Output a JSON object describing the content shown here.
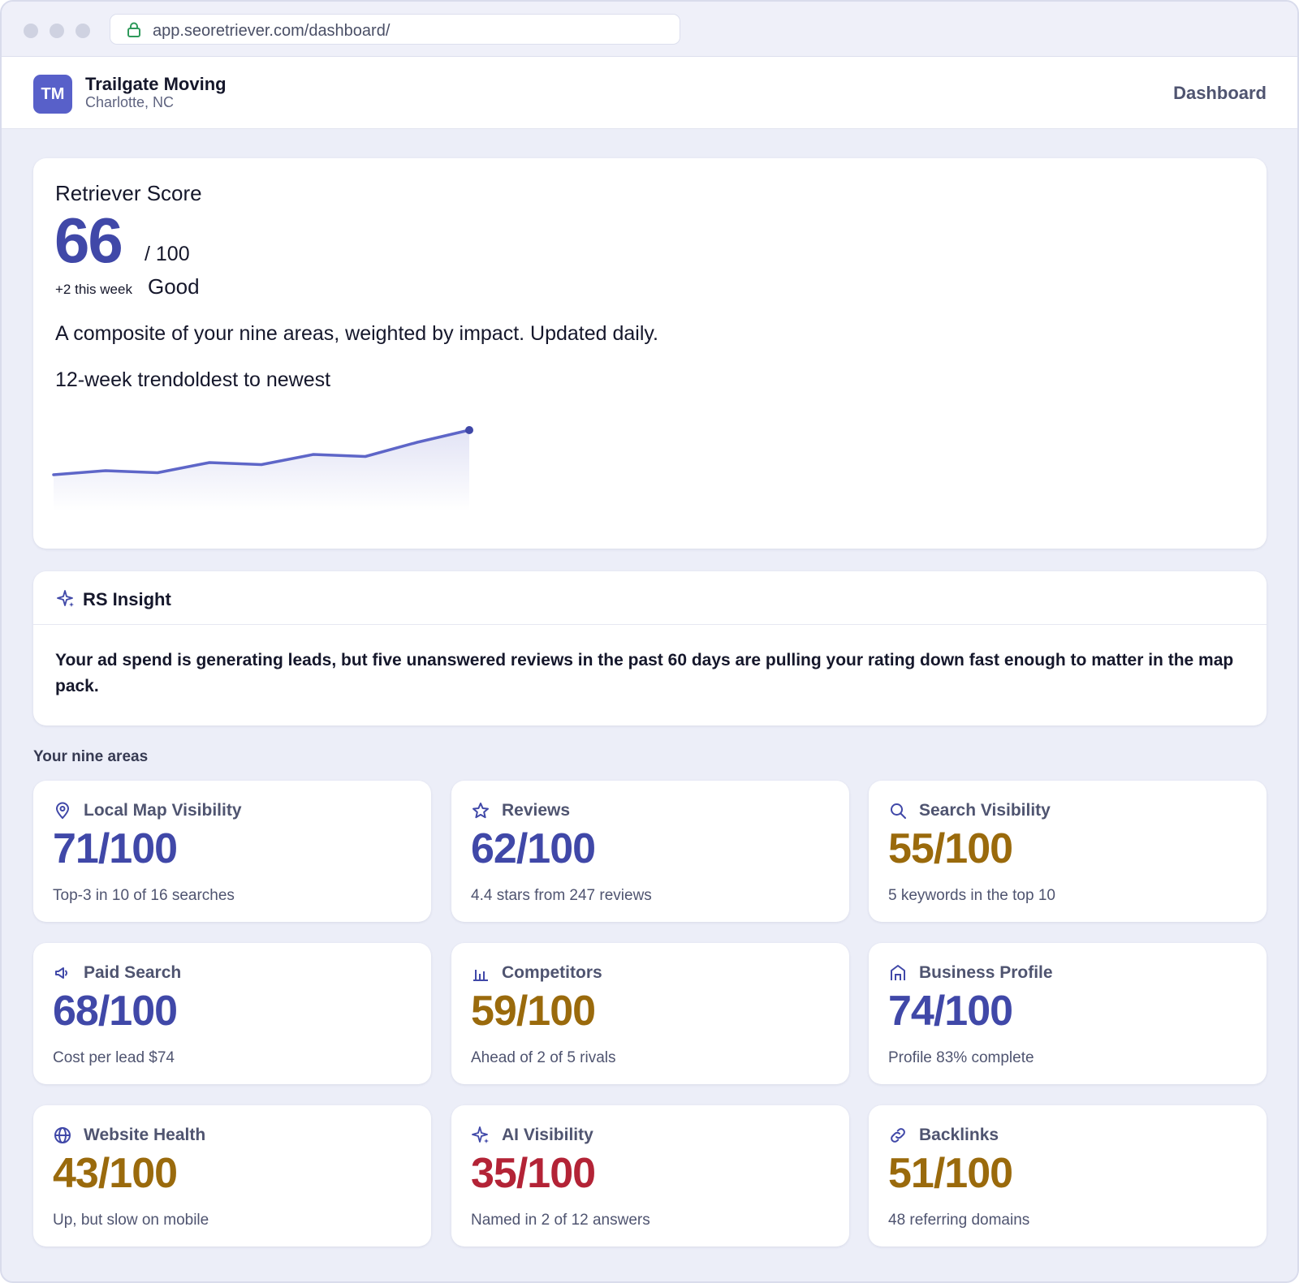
{
  "browser": {
    "url": "app.seoretriever.com/dashboard/"
  },
  "header": {
    "avatar_initials": "TM",
    "business_name": "Trailgate Moving",
    "location": "Charlotte, NC",
    "nav_label": "Dashboard"
  },
  "score": {
    "label": "Retriever Score",
    "value": "66",
    "max": "/ 100",
    "delta": "+2 this week",
    "rating": "Good",
    "description": "A composite of your nine areas, weighted by impact. Updated daily.",
    "trend_title": "12-week trendoldest to newest",
    "trend_values": [
      55,
      56,
      55.5,
      58,
      57.5,
      60,
      59.5,
      63,
      66
    ],
    "accent_color": "#4048a8",
    "line_color": "#5e66c8"
  },
  "insight": {
    "icon": "sparkle-icon",
    "title": "RS Insight",
    "body": "Your ad spend is generating leads, but five unanswered reviews in the past 60 days are pulling your rating down fast enough to matter in the map pack."
  },
  "areas_label": "Your nine areas",
  "areas": [
    {
      "icon": "map-pin-icon",
      "name": "Local Map Visibility",
      "score": "71/100",
      "status": "good",
      "detail": "Top-3 in 10 of 16 searches"
    },
    {
      "icon": "star-icon",
      "name": "Reviews",
      "score": "62/100",
      "status": "good",
      "detail": "4.4 stars from 247 reviews"
    },
    {
      "icon": "search-icon",
      "name": "Search Visibility",
      "score": "55/100",
      "status": "mid",
      "detail": "5 keywords in the top 10"
    },
    {
      "icon": "megaphone-icon",
      "name": "Paid Search",
      "score": "68/100",
      "status": "good",
      "detail": "Cost per lead $74"
    },
    {
      "icon": "bar-chart-icon",
      "name": "Competitors",
      "score": "59/100",
      "status": "mid",
      "detail": "Ahead of 2 of 5 rivals"
    },
    {
      "icon": "storefront-icon",
      "name": "Business Profile",
      "score": "74/100",
      "status": "good",
      "detail": "Profile 83% complete"
    },
    {
      "icon": "globe-icon",
      "name": "Website Health",
      "score": "43/100",
      "status": "mid",
      "detail": "Up, but slow on mobile"
    },
    {
      "icon": "sparkle-icon",
      "name": "AI Visibility",
      "score": "35/100",
      "status": "bad",
      "detail": "Named in 2 of 12 answers"
    },
    {
      "icon": "link-icon",
      "name": "Backlinks",
      "score": "51/100",
      "status": "mid",
      "detail": "48 referring domains"
    }
  ],
  "status_colors": {
    "good": "#4048a8",
    "mid": "#9a6a0c",
    "bad": "#b32336"
  }
}
